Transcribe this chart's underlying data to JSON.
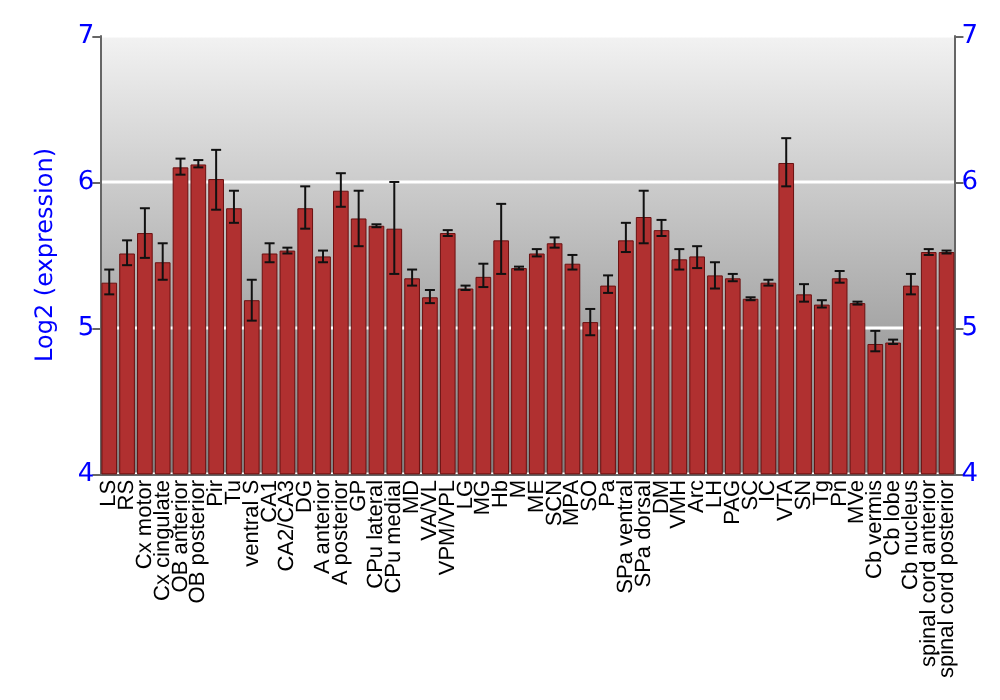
{
  "chart_data": {
    "type": "bar",
    "ylabel": "Log2 (expression)",
    "categories": [
      "LS",
      "RS",
      "Cx motor",
      "Cx cingulate",
      "OB anterior",
      "OB posterior",
      "Pir",
      "Tu",
      "ventral S",
      "CA1",
      "CA2/CA3",
      "DG",
      "A anterior",
      "A posterior",
      "GP",
      "CPu lateral",
      "CPu medial",
      "MD",
      "VA/VL",
      "VPM/VPL",
      "LG",
      "MG",
      "Hb",
      "M",
      "ME",
      "SCN",
      "MPA",
      "SO",
      "Pa",
      "SPa ventral",
      "SPa dorsal",
      "DM",
      "VMH",
      "Arc",
      "LH",
      "PAG",
      "SC",
      "IC",
      "VTA",
      "SN",
      "Tg",
      "Pn",
      "MVe",
      "Cb vermis",
      "Cb lobe",
      "Cb nucleus",
      "spinal cord anterior",
      "spinal cord posterior"
    ],
    "series": [
      {
        "color": "#b03030",
        "values": [
          5.31,
          5.51,
          5.65,
          5.45,
          6.1,
          6.12,
          6.02,
          5.82,
          5.19,
          5.51,
          5.53,
          5.82,
          5.49,
          5.94,
          5.75,
          5.7,
          5.68,
          5.34,
          5.21,
          5.65,
          5.27,
          5.35,
          5.6,
          5.41,
          5.51,
          5.58,
          5.44,
          5.04,
          5.29,
          5.6,
          5.76,
          5.67,
          5.47,
          5.49,
          5.36,
          5.34,
          5.2,
          5.31,
          6.13,
          5.23,
          5.16,
          5.34,
          5.17,
          4.89,
          4.9,
          5.29,
          5.52,
          5.52
        ],
        "errors": [
          [
            5.23,
            5.4
          ],
          [
            5.43,
            5.6
          ],
          [
            5.48,
            5.82
          ],
          [
            5.33,
            5.58
          ],
          [
            6.05,
            6.16
          ],
          [
            6.1,
            6.15
          ],
          [
            5.81,
            6.22
          ],
          [
            5.72,
            5.94
          ],
          [
            5.05,
            5.33
          ],
          [
            5.45,
            5.58
          ],
          [
            5.51,
            5.55
          ],
          [
            5.68,
            5.97
          ],
          [
            5.45,
            5.53
          ],
          [
            5.83,
            6.06
          ],
          [
            5.56,
            5.94
          ],
          [
            5.69,
            5.71
          ],
          [
            5.37,
            6.0
          ],
          [
            5.29,
            5.4
          ],
          [
            5.17,
            5.26
          ],
          [
            5.63,
            5.67
          ],
          [
            5.26,
            5.29
          ],
          [
            5.28,
            5.44
          ],
          [
            5.37,
            5.85
          ],
          [
            5.4,
            5.42
          ],
          [
            5.49,
            5.54
          ],
          [
            5.55,
            5.62
          ],
          [
            5.4,
            5.5
          ],
          [
            4.95,
            5.13
          ],
          [
            5.24,
            5.36
          ],
          [
            5.52,
            5.72
          ],
          [
            5.58,
            5.94
          ],
          [
            5.63,
            5.74
          ],
          [
            5.4,
            5.54
          ],
          [
            5.41,
            5.56
          ],
          [
            5.27,
            5.45
          ],
          [
            5.32,
            5.37
          ],
          [
            5.19,
            5.21
          ],
          [
            5.29,
            5.33
          ],
          [
            5.97,
            6.3
          ],
          [
            5.18,
            5.3
          ],
          [
            5.14,
            5.19
          ],
          [
            5.31,
            5.39
          ],
          [
            5.16,
            5.18
          ],
          [
            4.84,
            4.98
          ],
          [
            4.89,
            4.92
          ],
          [
            5.23,
            5.37
          ],
          [
            5.5,
            5.54
          ],
          [
            5.51,
            5.53
          ]
        ]
      }
    ],
    "ylim": [
      4,
      7
    ],
    "yticks": [
      4,
      5,
      6,
      7
    ],
    "y2lim": [
      4,
      7
    ],
    "y2ticks": [
      4,
      5,
      6,
      7
    ],
    "grid": "y"
  }
}
